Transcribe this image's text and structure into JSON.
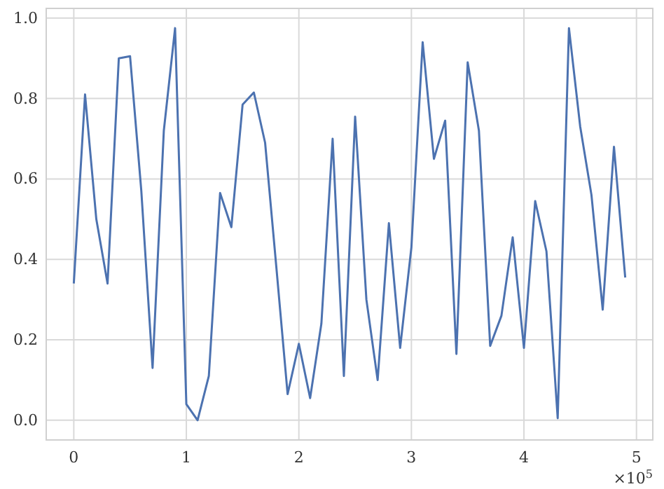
{
  "chart_data": {
    "type": "line",
    "x": [
      0,
      0.1,
      0.2,
      0.3,
      0.4,
      0.5,
      0.6,
      0.7,
      0.8,
      0.9,
      1.0,
      1.1,
      1.2,
      1.3,
      1.4,
      1.5,
      1.6,
      1.7,
      1.8,
      1.9,
      2.0,
      2.1,
      2.2,
      2.3,
      2.4,
      2.5,
      2.6,
      2.7,
      2.8,
      2.9,
      3.0,
      3.1,
      3.2,
      3.3,
      3.4,
      3.5,
      3.6,
      3.7,
      3.8,
      3.9,
      4.0,
      4.1,
      4.2,
      4.3,
      4.4,
      4.5,
      4.6,
      4.7,
      4.8,
      4.9
    ],
    "series": [
      {
        "color": "#4c72b0",
        "values": [
          0.34,
          0.81,
          0.5,
          0.34,
          0.9,
          0.905,
          0.57,
          0.13,
          0.72,
          0.975,
          0.04,
          0.0,
          0.11,
          0.565,
          0.48,
          0.785,
          0.815,
          0.69,
          0.38,
          0.065,
          0.19,
          0.055,
          0.24,
          0.7,
          0.11,
          0.755,
          0.3,
          0.1,
          0.49,
          0.18,
          0.43,
          0.94,
          0.65,
          0.745,
          0.165,
          0.89,
          0.72,
          0.185,
          0.26,
          0.455,
          0.18,
          0.545,
          0.42,
          0.005,
          0.975,
          0.73,
          0.56,
          0.275,
          0.68,
          0.355
        ]
      }
    ],
    "xlim": [
      -0.245,
      5.145
    ],
    "ylim": [
      -0.049,
      1.024
    ],
    "xticks": [
      0,
      1,
      2,
      3,
      4,
      5
    ],
    "yticks": [
      {
        "value": 0,
        "label": "0.0"
      },
      {
        "value": 0.2,
        "label": "0.2"
      },
      {
        "value": 0.4,
        "label": "0.4"
      },
      {
        "value": 0.6,
        "label": "0.6"
      },
      {
        "value": 0.8,
        "label": "0.8"
      },
      {
        "value": 1.0,
        "label": "1.0"
      }
    ],
    "grid": true,
    "line_style": "solid",
    "marker": "none",
    "annotations": [
      "×10$^{5}$"
    ]
  }
}
